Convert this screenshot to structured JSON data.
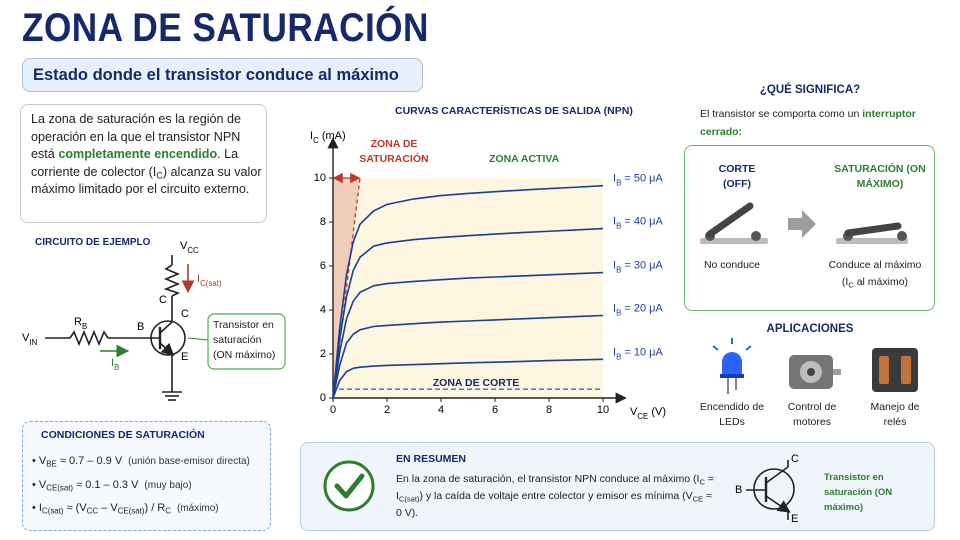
{
  "header": {
    "title": "ZONA DE SATURACIÓN",
    "subtitle": "Estado donde el transistor conduce al máximo"
  },
  "intro": [
    "La zona de saturación es la región de operación en la que el transistor NPN está ",
    {
      "b": "completamente encendido"
    },
    ". La corriente de colector (I",
    {
      "sub": "C"
    },
    ") alcanza su valor máximo limitado por el circuito externo."
  ],
  "circuit": {
    "title": "CIRCUITO DE EJEMPLO",
    "vcc": [
      "V",
      {
        "sub": "CC"
      }
    ],
    "ic": [
      "I",
      {
        "sub": "C(sat)"
      }
    ],
    "rc_node": "C",
    "rb": [
      "R",
      {
        "sub": "B"
      }
    ],
    "vin": [
      "V",
      {
        "sub": "IN"
      }
    ],
    "ib": [
      "I",
      {
        "sub": "B"
      }
    ],
    "base": "B",
    "collector": "C",
    "emitter": "E",
    "callout": "Transistor en saturación (ON máximo)"
  },
  "conditions": {
    "title": "CONDICIONES DE SATURACIÓN",
    "items": [
      {
        "formula": [
          "V",
          {
            "sub": "BE"
          },
          " ≈ 0.7 – 0.9 V"
        ],
        "note": "(unión base-emisor directa)"
      },
      {
        "formula": [
          "V",
          {
            "sub": "CE(sat)"
          },
          " ≈ 0.1 – 0.3 V"
        ],
        "note": "(muy bajo)"
      },
      {
        "formula": [
          "I",
          {
            "sub": "C(sat)"
          },
          " ≈ (V",
          {
            "sub": "CC"
          },
          " – V",
          {
            "sub": "CE(sat)"
          },
          ") / R",
          {
            "sub": "C"
          }
        ],
        "note": "(máximo)"
      }
    ]
  },
  "chart_data": {
    "type": "line",
    "title": "CURVAS CARACTERÍSTICAS DE SALIDA (NPN)",
    "x_label": [
      "V",
      {
        "sub": "CE"
      },
      " (V)"
    ],
    "y_label": [
      "I",
      {
        "sub": "C"
      },
      " (mA)"
    ],
    "x": [
      0,
      0.25,
      0.5,
      0.75,
      1,
      1.5,
      2,
      3,
      4,
      5,
      6,
      7,
      8,
      9,
      10
    ],
    "xlim": [
      0,
      10
    ],
    "ylim": [
      0,
      10
    ],
    "xticks": [
      0,
      2,
      4,
      6,
      8,
      10
    ],
    "yticks": [
      0,
      2,
      4,
      6,
      8,
      10
    ],
    "series": [
      {
        "name": [
          "I",
          {
            "sub": "B"
          },
          " = 50 μA"
        ],
        "color": "#1c3f94",
        "values": [
          0,
          3.2,
          5.6,
          7.1,
          7.9,
          8.5,
          8.8,
          9.05,
          9.2,
          9.3,
          9.38,
          9.45,
          9.52,
          9.58,
          9.65
        ]
      },
      {
        "name": [
          "I",
          {
            "sub": "B"
          },
          " = 40 μA"
        ],
        "color": "#1c3f94",
        "values": [
          0,
          2.7,
          4.6,
          5.8,
          6.4,
          6.9,
          7.05,
          7.2,
          7.3,
          7.38,
          7.45,
          7.52,
          7.58,
          7.64,
          7.7
        ]
      },
      {
        "name": [
          "I",
          {
            "sub": "B"
          },
          " = 30 μA"
        ],
        "color": "#1c3f94",
        "values": [
          0,
          2.1,
          3.6,
          4.4,
          4.8,
          5.1,
          5.2,
          5.3,
          5.38,
          5.45,
          5.5,
          5.55,
          5.6,
          5.65,
          5.7
        ]
      },
      {
        "name": [
          "I",
          {
            "sub": "B"
          },
          " = 20 μA"
        ],
        "color": "#1c3f94",
        "values": [
          0,
          1.5,
          2.5,
          2.9,
          3.1,
          3.25,
          3.3,
          3.38,
          3.45,
          3.5,
          3.55,
          3.6,
          3.65,
          3.7,
          3.75
        ]
      },
      {
        "name": [
          "I",
          {
            "sub": "B"
          },
          " = 10 μA"
        ],
        "color": "#1c3f94",
        "values": [
          0,
          0.8,
          1.2,
          1.35,
          1.4,
          1.45,
          1.48,
          1.52,
          1.56,
          1.6,
          1.63,
          1.66,
          1.7,
          1.73,
          1.76
        ]
      }
    ],
    "regions": {
      "saturation": {
        "label": "ZONA DE SATURACIÓN",
        "x": [
          0,
          1
        ],
        "y": [
          0,
          10
        ],
        "color": "#c0392b"
      },
      "active": {
        "label": "ZONA ACTIVA"
      },
      "cutoff": {
        "label": "ZONA DE CORTE",
        "y": 0.4,
        "color": "#3a6fc4"
      }
    }
  },
  "meaning": {
    "title": "¿QUÉ SIGNIFICA?",
    "text": [
      "El transistor se comporta como un ",
      {
        "b": "interruptor cerrado:"
      }
    ],
    "off_title": "CORTE (OFF)",
    "on_title": "SATURACIÓN (ON MÁXIMO)",
    "off_caption": "No conduce",
    "on_caption": "Conduce al máximo",
    "on_note": [
      "(I",
      {
        "sub": "C"
      },
      " al máximo)"
    ]
  },
  "applications": {
    "title": "APLICACIONES",
    "items": [
      "Encendido de LEDs",
      "Control de motores",
      "Manejo de relés"
    ]
  },
  "summary": {
    "title": "EN RESUMEN",
    "text": [
      "En la zona de saturación, el transistor NPN conduce al máximo (I",
      {
        "sub": "C"
      },
      " = I",
      {
        "sub": "C(sat)"
      },
      ") y la caída de voltaje entre colector y emisor es mínima (V",
      {
        "sub": "CE"
      },
      " ≈ 0 V)."
    ],
    "symbol": {
      "collector": "C",
      "base": "B",
      "emitter": "E"
    },
    "note": "Transistor en saturación (ON máximo)"
  }
}
